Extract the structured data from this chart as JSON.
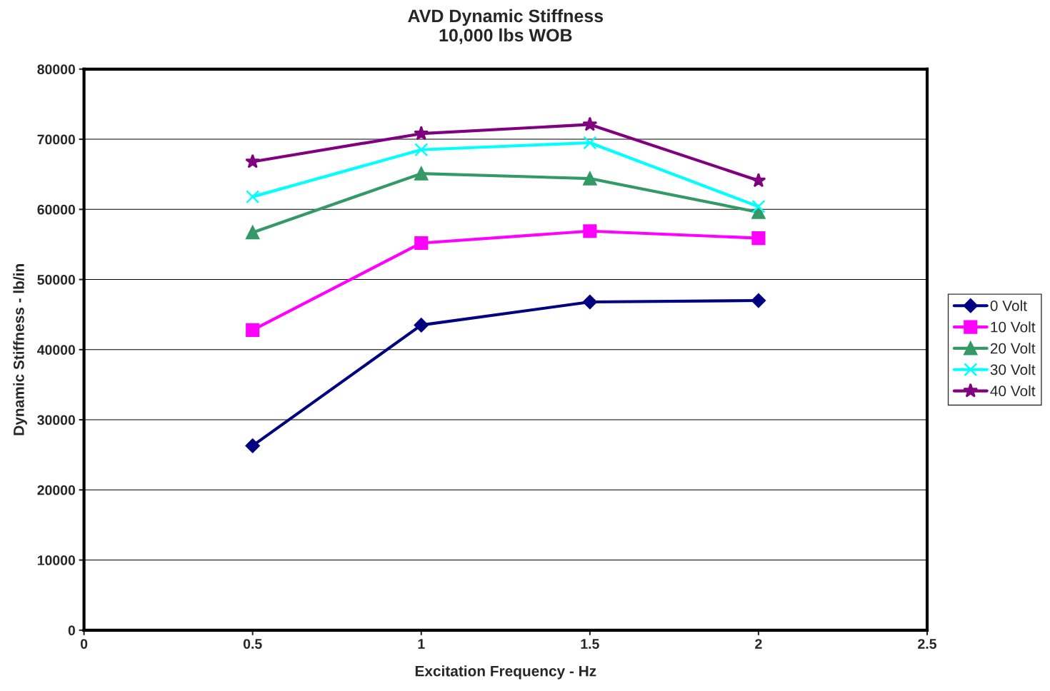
{
  "chart_data": {
    "type": "line",
    "title": "AVD Dynamic Stiffness\n10,000 lbs WOB",
    "xlabel": "Excitation Frequency - Hz",
    "ylabel": "Dynamic Stiffness - lb/in",
    "x": [
      0.5,
      1,
      1.5,
      2
    ],
    "series": [
      {
        "name": "0 Volt",
        "color": "#000080",
        "marker": "diamond",
        "values": [
          26300,
          43500,
          46800,
          47000
        ]
      },
      {
        "name": "10 Volt",
        "color": "#ff00ff",
        "marker": "square",
        "values": [
          42800,
          55200,
          56900,
          55900
        ]
      },
      {
        "name": "20 Volt",
        "color": "#339966",
        "marker": "triangle",
        "values": [
          56700,
          65100,
          64400,
          59600
        ]
      },
      {
        "name": "30 Volt",
        "color": "#00ffff",
        "marker": "cross",
        "values": [
          61800,
          68500,
          69500,
          60400
        ]
      },
      {
        "name": "40 Volt",
        "color": "#800080",
        "marker": "star",
        "values": [
          66800,
          70800,
          72100,
          64100
        ]
      }
    ],
    "xlim": [
      0,
      2.5
    ],
    "xticks": [
      0,
      0.5,
      1,
      1.5,
      2,
      2.5
    ],
    "ylim": [
      0,
      80000
    ],
    "yticks": [
      0,
      10000,
      20000,
      30000,
      40000,
      50000,
      60000,
      70000,
      80000
    ],
    "grid": "y",
    "legend": "right",
    "line_style": "solid"
  }
}
